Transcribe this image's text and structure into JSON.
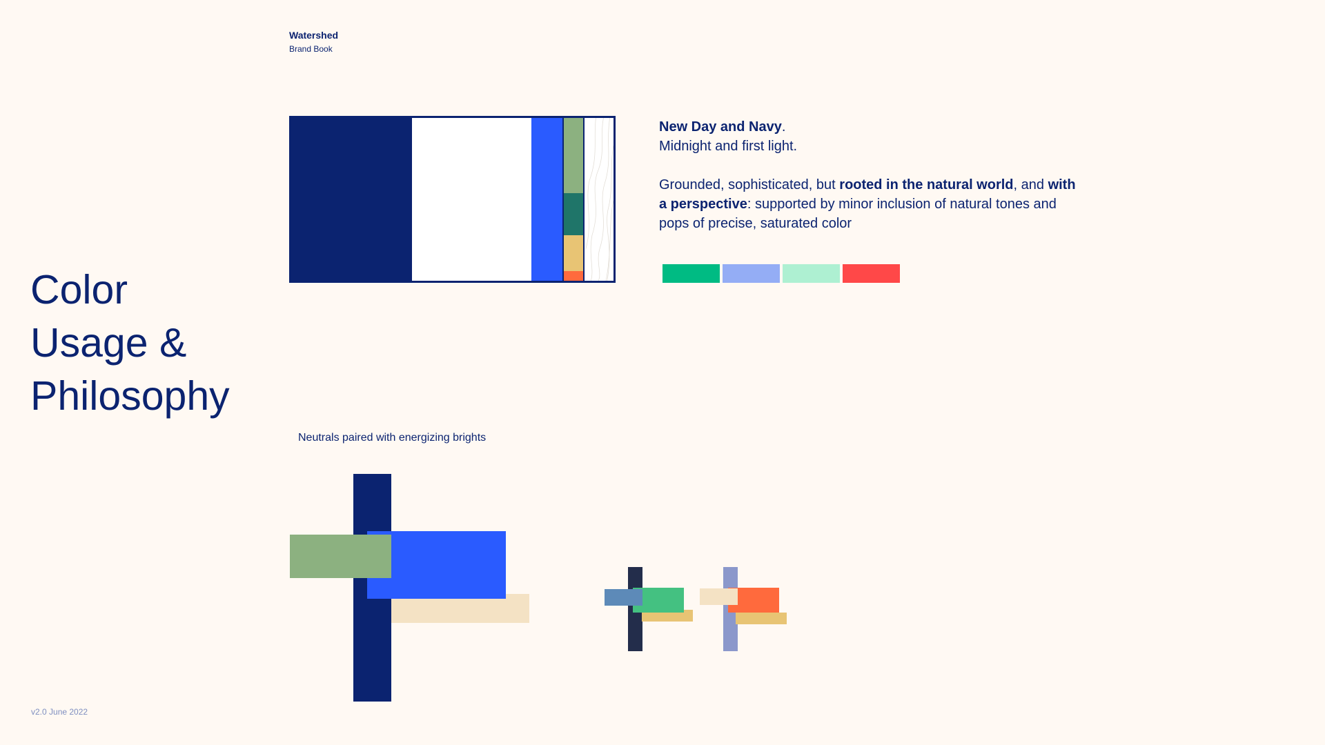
{
  "header": {
    "brand": "Watershed",
    "subtitle": "Brand Book"
  },
  "title_lines": [
    "Color",
    "Usage &",
    "Philosophy"
  ],
  "footer": {
    "version": "v2.0 June 2022"
  },
  "palette_strip": {
    "colors": {
      "navy": "#0b2370",
      "white": "#ffffff",
      "blue": "#2a5bff",
      "stack": [
        "#8cb180",
        "#1f7569",
        "#e8c474",
        "#ff6a3d"
      ]
    },
    "stack_shares": [
      0.46,
      0.26,
      0.22,
      0.06
    ]
  },
  "description": {
    "heading_bold": "New Day and Navy",
    "heading_tail": ".",
    "tagline": "Midnight and first light.",
    "body_1": "Grounded, sophisticated, but ",
    "body_bold_1": "rooted in the natural world",
    "body_2": ", and ",
    "body_bold_2": "with a perspective",
    "body_3": ": supported by minor inclusion of natural tones and pops of precise, saturated color"
  },
  "accent_swatches": [
    "#00bb83",
    "#94adf5",
    "#aef0d2",
    "#ff4848"
  ],
  "composition": {
    "caption": "Neutrals paired with energizing brights",
    "large_colors": {
      "navy": "#0b2370",
      "green": "#8cb180",
      "blue": "#2a5bff",
      "sand": "#f4e2c4"
    },
    "small_a_colors": {
      "bar": "#232d4b",
      "steel": "#5d8ab8",
      "green": "#44c181",
      "gold": "#e8c474"
    },
    "small_b_colors": {
      "bar": "#8b98cb",
      "sand": "#f4e2c4",
      "orange": "#ff6a3d",
      "gold": "#e8c474"
    }
  }
}
